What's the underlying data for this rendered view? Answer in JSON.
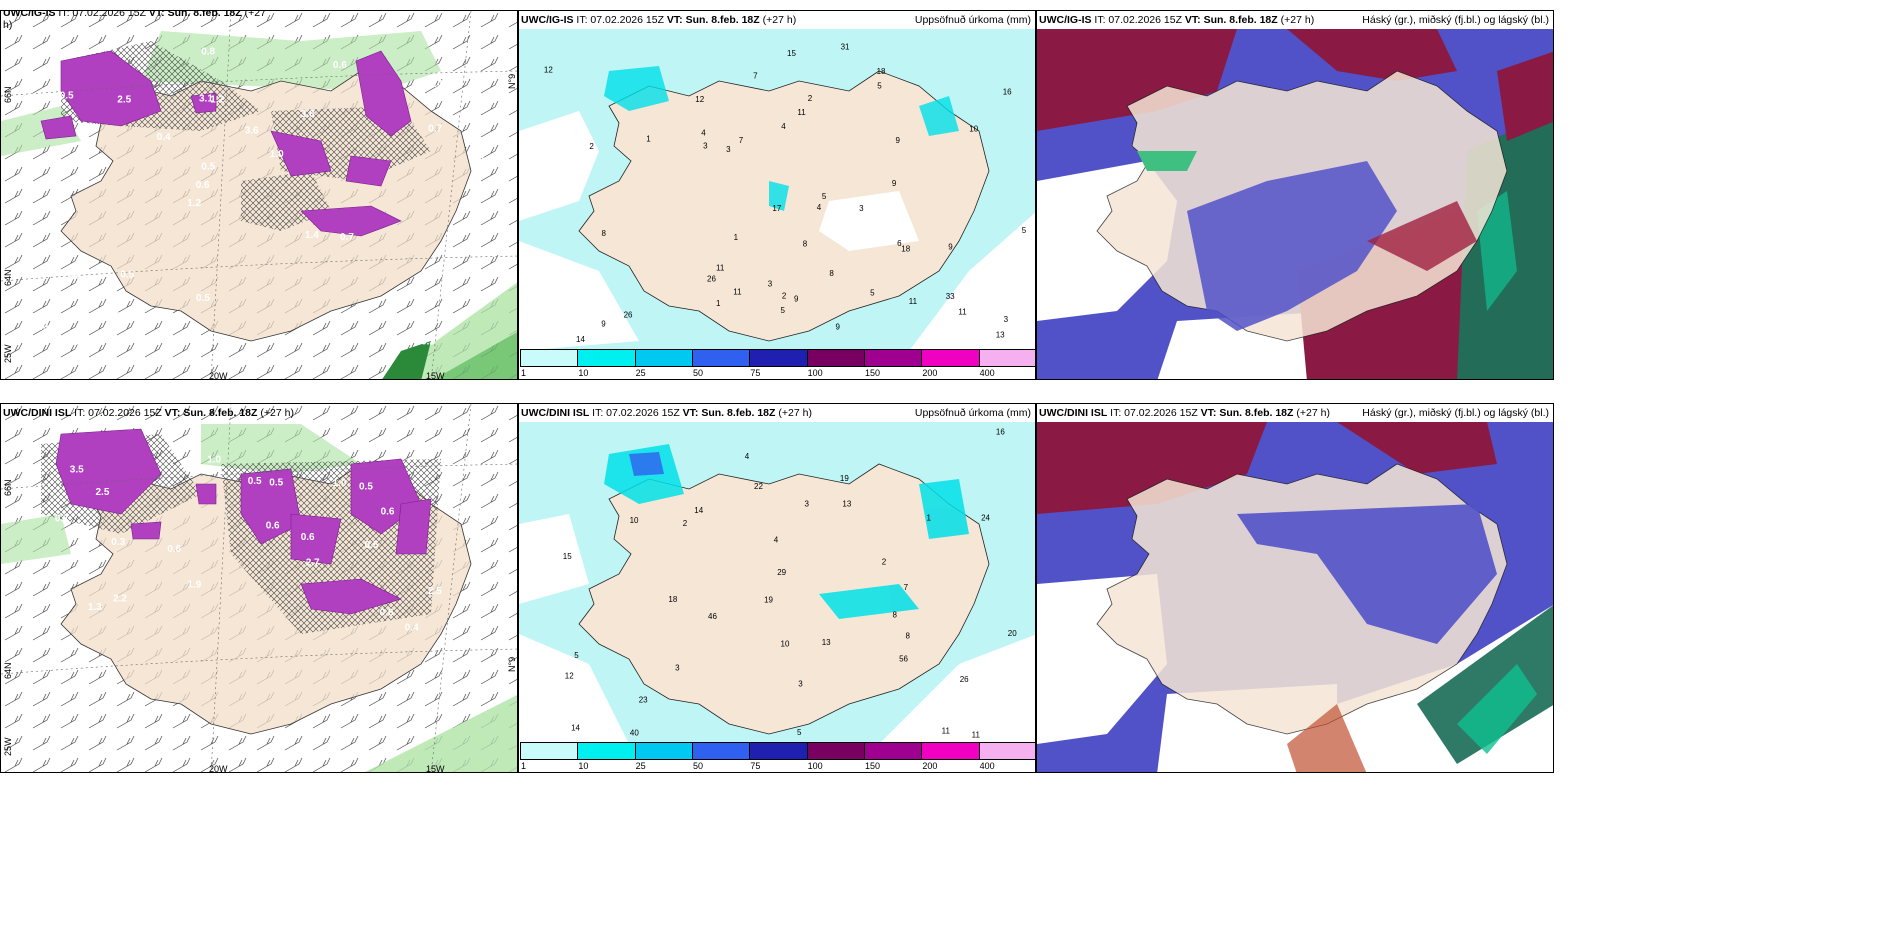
{
  "panels": {
    "p1": {
      "model": "UWC/IG-IS",
      "it": "IT: 07.02.2026 15Z",
      "vt": "VT: Sun. 8.feb. 18Z",
      "lead": "(+27",
      "lead2": "h)",
      "right": ""
    },
    "p2": {
      "model": "UWC/IG-IS",
      "it": "IT: 07.02.2026 15Z",
      "vt": "VT: Sun. 8.feb. 18Z",
      "lead": "(+27 h)",
      "right": "Uppsöfnuð úrkoma (mm)"
    },
    "p3": {
      "model": "UWC/IG-IS",
      "it": "IT: 07.02.2026 15Z",
      "vt": "VT: Sun. 8.feb. 18Z",
      "lead": "(+27 h)",
      "right": "Háský (gr.), miðský (fj.bl.) og lágský (bl.)"
    },
    "p4": {
      "model": "UWC/DINI ISL",
      "it": "IT: 07.02.2026 15Z",
      "vt": "VT: Sun. 8.feb. 18Z",
      "lead": "(+27 h)",
      "right": ""
    },
    "p5": {
      "model": "UWC/DINI ISL",
      "it": "IT: 07.02.2026 15Z",
      "vt": "VT: Sun. 8.feb. 18Z",
      "lead": "(+27 h)",
      "right": "Uppsöfnuð úrkoma (mm)"
    },
    "p6": {
      "model": "UWC/DINI ISL",
      "it": "IT: 07.02.2026 15Z",
      "vt": "VT: Sun. 8.feb. 18Z",
      "lead": "(+27 h)",
      "right": "Háský (gr.), miðský (fj.bl.) og lágský (bl.)"
    }
  },
  "axis": {
    "lon20": "20W",
    "lon15": "15W",
    "lon25": "25W",
    "lat66": "66N",
    "lat64": "64N",
    "lat64b": "64N",
    "lat66b": "66N",
    "e66": "N°9",
    "e64": "N°9"
  },
  "colorbar": {
    "ticks": [
      "1",
      "10",
      "25",
      "50",
      "75",
      "100",
      "150",
      "200",
      "400"
    ],
    "colors": [
      "#c9fbfb",
      "#00f0f0",
      "#00c8f0",
      "#3060f0",
      "#2020b0",
      "#780060",
      "#a00090",
      "#f000c0",
      "#f5b0f0"
    ]
  },
  "colors": {
    "land": "#f5e6d6",
    "sea": "#ffffff",
    "precip_light": "#bff5f5",
    "snow_green": "#90e090",
    "snow_purple": "#b040c0",
    "high_cloud": "#1b7e60",
    "mid_cloud": "#a01848",
    "low_cloud": "#4040c0"
  },
  "p1_values": [
    "0.3",
    "0.3",
    "0.4",
    "1.2",
    "3.8",
    "3.5",
    "3.1",
    "3.6",
    "0.6",
    "0.4",
    "1.0",
    "0.6",
    "1.2",
    "1.0",
    "0.7",
    "0.5",
    "0.8",
    "0.5",
    "1.4",
    "0.7",
    "0.6",
    "0.5",
    "0.5",
    "2.5",
    "0.6",
    "0.5"
  ],
  "p4_values": [
    "0.4",
    "0.3",
    "2.7",
    "3.5",
    "2.5",
    "2.5",
    "2.2",
    "0.6",
    "0.5",
    "0.5",
    "1.0",
    "0.6",
    "1.9",
    "1.0",
    "0.6",
    "0.6",
    "0.5",
    "0.6",
    "0.7",
    "1.3",
    "0.6",
    "0.5",
    "0.6"
  ],
  "p2_values": [
    "9",
    "9",
    "5",
    "8",
    "7",
    "31",
    "33",
    "18",
    "11",
    "26",
    "13",
    "3",
    "11",
    "15",
    "5",
    "4",
    "6",
    "8",
    "17",
    "16",
    "12",
    "26",
    "5",
    "3",
    "18",
    "5",
    "7",
    "11",
    "10",
    "8",
    "11",
    "1",
    "2",
    "14",
    "4",
    "9",
    "2",
    "9",
    "2",
    "3",
    "1",
    "11",
    "12",
    "1",
    "9",
    "3",
    "4",
    "9",
    "5",
    "3"
  ],
  "p5_values": [
    "4",
    "11",
    "8",
    "5",
    "7",
    "19",
    "46",
    "29",
    "11",
    "18",
    "22",
    "10",
    "19",
    "16",
    "26",
    "56",
    "14",
    "23",
    "20",
    "24",
    "3",
    "13",
    "15",
    "40",
    "12",
    "14",
    "10",
    "13",
    "2",
    "1",
    "3",
    "5",
    "4",
    "3",
    "8",
    "2"
  ]
}
